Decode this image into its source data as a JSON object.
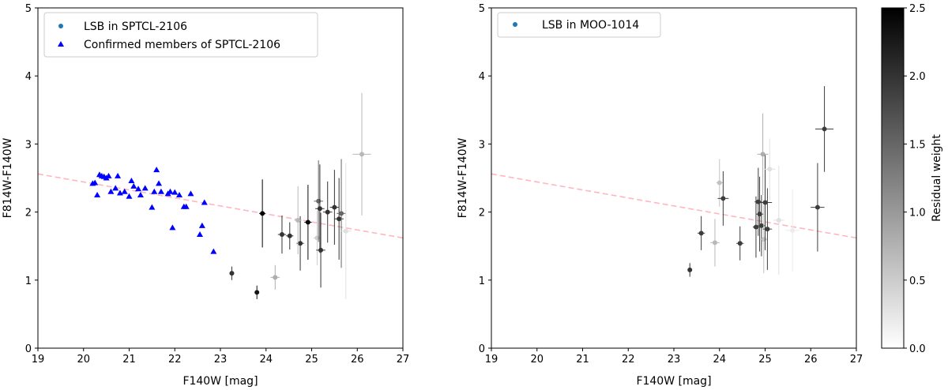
{
  "colors": {
    "lsb_marker": "#1f77b4",
    "member_marker": "#0000ff",
    "trend_line": "#ffb6c1",
    "legend_border": "#cccccc"
  },
  "chart_data": [
    {
      "type": "scatter",
      "xlabel": "F140W [mag]",
      "ylabel": "F814W-F140W",
      "xlim": [
        19,
        27
      ],
      "ylim": [
        0,
        5
      ],
      "xticks": [
        19,
        20,
        21,
        22,
        23,
        24,
        25,
        26,
        27
      ],
      "yticks": [
        0,
        1,
        2,
        3,
        4,
        5
      ],
      "legend": {
        "placement": "upper-left",
        "entries": [
          {
            "label": "LSB in SPTCL-2106",
            "marker": "circle"
          },
          {
            "label": "Confirmed members of SPTCL-2106",
            "marker": "triangle"
          }
        ]
      },
      "trend_line": {
        "x": [
          19,
          27
        ],
        "y": [
          2.56,
          1.62
        ]
      },
      "series": [
        {
          "name": "LSB in SPTCL-2106",
          "marker": "circle",
          "points": [
            {
              "x": 23.25,
              "y": 1.1,
              "xerr": 0.05,
              "yerr": 0.1,
              "w": 2.0
            },
            {
              "x": 23.8,
              "y": 0.82,
              "xerr": 0.04,
              "yerr": 0.1,
              "w": 2.3
            },
            {
              "x": 23.92,
              "y": 1.98,
              "xerr": 0.07,
              "yerr": 0.5,
              "w": 2.5
            },
            {
              "x": 24.2,
              "y": 1.04,
              "xerr": 0.1,
              "yerr": 0.18,
              "w": 0.8
            },
            {
              "x": 24.35,
              "y": 1.67,
              "xerr": 0.09,
              "yerr": 0.28,
              "w": 2.0
            },
            {
              "x": 24.52,
              "y": 1.65,
              "xerr": 0.08,
              "yerr": 0.2,
              "w": 2.0
            },
            {
              "x": 24.75,
              "y": 1.54,
              "xerr": 0.08,
              "yerr": 0.4,
              "w": 2.0
            },
            {
              "x": 24.7,
              "y": 1.88,
              "xerr": 0.08,
              "yerr": 0.5,
              "w": 0.7
            },
            {
              "x": 24.92,
              "y": 1.85,
              "xerr": 0.08,
              "yerr": 0.55,
              "w": 2.4
            },
            {
              "x": 25.12,
              "y": 1.62,
              "xerr": 0.08,
              "yerr": 0.4,
              "w": 0.5
            },
            {
              "x": 25.15,
              "y": 2.16,
              "xerr": 0.1,
              "yerr": 0.6,
              "w": 1.5
            },
            {
              "x": 25.18,
              "y": 2.05,
              "xerr": 0.1,
              "yerr": 0.65,
              "w": 2.0
            },
            {
              "x": 25.2,
              "y": 1.44,
              "xerr": 0.1,
              "yerr": 0.55,
              "w": 2.0
            },
            {
              "x": 25.35,
              "y": 2.0,
              "xerr": 0.1,
              "yerr": 0.45,
              "w": 2.0
            },
            {
              "x": 25.5,
              "y": 2.07,
              "xerr": 0.1,
              "yerr": 0.55,
              "w": 2.0
            },
            {
              "x": 25.6,
              "y": 1.9,
              "xerr": 0.1,
              "yerr": 0.6,
              "w": 2.0
            },
            {
              "x": 25.65,
              "y": 1.98,
              "xerr": 0.1,
              "yerr": 0.8,
              "w": 1.5
            },
            {
              "x": 25.75,
              "y": 1.72,
              "xerr": 0.12,
              "yerr": 1.0,
              "w": 0.3
            },
            {
              "x": 26.1,
              "y": 2.85,
              "xerr": 0.2,
              "yerr": 0.9,
              "w": 0.7
            }
          ]
        },
        {
          "name": "Confirmed members of SPTCL-2106",
          "marker": "triangle",
          "points": [
            {
              "x": 20.2,
              "y": 2.42
            },
            {
              "x": 20.25,
              "y": 2.43
            },
            {
              "x": 20.3,
              "y": 2.25
            },
            {
              "x": 20.35,
              "y": 2.55
            },
            {
              "x": 20.4,
              "y": 2.53
            },
            {
              "x": 20.45,
              "y": 2.52
            },
            {
              "x": 20.5,
              "y": 2.5
            },
            {
              "x": 20.55,
              "y": 2.53
            },
            {
              "x": 20.6,
              "y": 2.3
            },
            {
              "x": 20.7,
              "y": 2.35
            },
            {
              "x": 20.75,
              "y": 2.53
            },
            {
              "x": 20.8,
              "y": 2.28
            },
            {
              "x": 20.9,
              "y": 2.3
            },
            {
              "x": 21.0,
              "y": 2.23
            },
            {
              "x": 21.05,
              "y": 2.46
            },
            {
              "x": 21.1,
              "y": 2.38
            },
            {
              "x": 21.2,
              "y": 2.34
            },
            {
              "x": 21.25,
              "y": 2.25
            },
            {
              "x": 21.35,
              "y": 2.35
            },
            {
              "x": 21.5,
              "y": 2.07
            },
            {
              "x": 21.55,
              "y": 2.3
            },
            {
              "x": 21.6,
              "y": 2.62
            },
            {
              "x": 21.65,
              "y": 2.42
            },
            {
              "x": 21.7,
              "y": 2.3
            },
            {
              "x": 21.85,
              "y": 2.27
            },
            {
              "x": 21.9,
              "y": 2.3
            },
            {
              "x": 21.95,
              "y": 1.77
            },
            {
              "x": 22.0,
              "y": 2.29
            },
            {
              "x": 22.1,
              "y": 2.25
            },
            {
              "x": 22.2,
              "y": 2.08
            },
            {
              "x": 22.25,
              "y": 2.08
            },
            {
              "x": 22.35,
              "y": 2.27
            },
            {
              "x": 22.55,
              "y": 1.67
            },
            {
              "x": 22.6,
              "y": 1.8
            },
            {
              "x": 22.65,
              "y": 2.14
            },
            {
              "x": 22.85,
              "y": 1.42
            }
          ]
        }
      ]
    },
    {
      "type": "scatter",
      "xlabel": "F140W [mag]",
      "ylabel": "F814W-F140W",
      "xlim": [
        19,
        27
      ],
      "ylim": [
        0,
        5
      ],
      "xticks": [
        19,
        20,
        21,
        22,
        23,
        24,
        25,
        26,
        27
      ],
      "yticks": [
        0,
        1,
        2,
        3,
        4,
        5
      ],
      "legend": {
        "placement": "upper-left",
        "entries": [
          {
            "label": "LSB in MOO-1014",
            "marker": "circle"
          }
        ]
      },
      "trend_line": {
        "x": [
          19,
          27
        ],
        "y": [
          2.56,
          1.62
        ]
      },
      "series": [
        {
          "name": "LSB in MOO-1014",
          "marker": "circle",
          "points": [
            {
              "x": 23.35,
              "y": 1.15,
              "xerr": 0.04,
              "yerr": 0.1,
              "w": 2.0
            },
            {
              "x": 23.6,
              "y": 1.69,
              "xerr": 0.08,
              "yerr": 0.25,
              "w": 1.9
            },
            {
              "x": 23.9,
              "y": 1.55,
              "xerr": 0.1,
              "yerr": 0.35,
              "w": 0.7
            },
            {
              "x": 24.0,
              "y": 2.43,
              "xerr": 0.07,
              "yerr": 0.35,
              "w": 0.6
            },
            {
              "x": 24.08,
              "y": 2.2,
              "xerr": 0.12,
              "yerr": 0.4,
              "w": 1.9
            },
            {
              "x": 24.45,
              "y": 1.54,
              "xerr": 0.08,
              "yerr": 0.25,
              "w": 1.9
            },
            {
              "x": 24.8,
              "y": 1.78,
              "xerr": 0.07,
              "yerr": 0.45,
              "w": 1.9
            },
            {
              "x": 24.85,
              "y": 2.15,
              "xerr": 0.08,
              "yerr": 0.5,
              "w": 1.9
            },
            {
              "x": 24.88,
              "y": 1.97,
              "xerr": 0.08,
              "yerr": 0.55,
              "w": 1.9
            },
            {
              "x": 24.92,
              "y": 1.8,
              "xerr": 0.08,
              "yerr": 0.45,
              "w": 1.9
            },
            {
              "x": 24.95,
              "y": 2.85,
              "xerr": 0.12,
              "yerr": 0.6,
              "w": 0.8
            },
            {
              "x": 24.97,
              "y": 1.6,
              "xerr": 0.08,
              "yerr": 0.5,
              "w": 0.6
            },
            {
              "x": 25.0,
              "y": 2.14,
              "xerr": 0.15,
              "yerr": 0.7,
              "w": 1.9
            },
            {
              "x": 25.05,
              "y": 1.75,
              "xerr": 0.1,
              "yerr": 0.6,
              "w": 1.9
            },
            {
              "x": 25.1,
              "y": 2.63,
              "xerr": 0.12,
              "yerr": 0.45,
              "w": 0.3
            },
            {
              "x": 25.3,
              "y": 1.88,
              "xerr": 0.12,
              "yerr": 0.8,
              "w": 0.3
            },
            {
              "x": 25.6,
              "y": 1.73,
              "xerr": 0.15,
              "yerr": 0.6,
              "w": 0.2
            },
            {
              "x": 26.15,
              "y": 2.07,
              "xerr": 0.15,
              "yerr": 0.65,
              "w": 1.9
            },
            {
              "x": 26.3,
              "y": 3.22,
              "xerr": 0.2,
              "yerr": 0.63,
              "w": 1.9
            }
          ]
        }
      ]
    }
  ],
  "colorbar": {
    "label": "Residual weight",
    "min": 0.0,
    "max": 2.5,
    "ticks": [
      "0.0",
      "0.5",
      "1.0",
      "1.5",
      "2.0",
      "2.5"
    ],
    "tick_values": [
      0.0,
      0.5,
      1.0,
      1.5,
      2.0,
      2.5
    ]
  }
}
